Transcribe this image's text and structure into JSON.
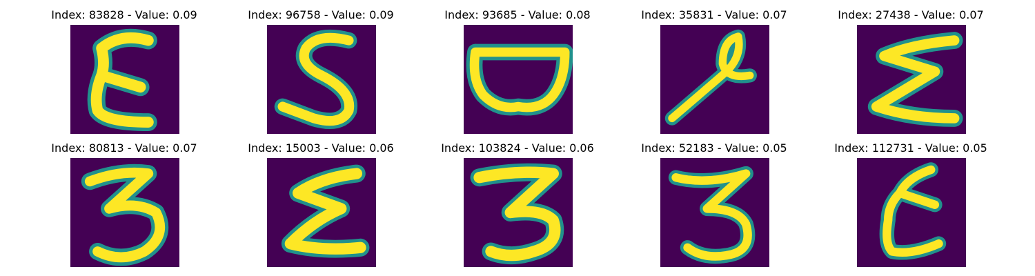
{
  "colors": {
    "background": "#440154",
    "stroke": "#fde725",
    "edge": "#21918c"
  },
  "panels": [
    {
      "title": "Index: 83828 - Value: 0.09",
      "glyph": "E-shape"
    },
    {
      "title": "Index: 96758 - Value: 0.09",
      "glyph": "S-shape"
    },
    {
      "title": "Index: 93685 - Value: 0.08",
      "glyph": "bowl-shape"
    },
    {
      "title": "Index: 35831 - Value: 0.07",
      "glyph": "looped-stroke"
    },
    {
      "title": "Index: 27438 - Value: 0.07",
      "glyph": "sigma-shape"
    },
    {
      "title": "Index: 80813 - Value: 0.07",
      "glyph": "3-shape"
    },
    {
      "title": "Index: 15003 - Value: 0.06",
      "glyph": "sigma-shape"
    },
    {
      "title": "Index: 103824 - Value: 0.06",
      "glyph": "3-shape"
    },
    {
      "title": "Index: 52183 - Value: 0.05",
      "glyph": "3-shape"
    },
    {
      "title": "Index: 112731 - Value: 0.05",
      "glyph": "E-shape"
    }
  ]
}
